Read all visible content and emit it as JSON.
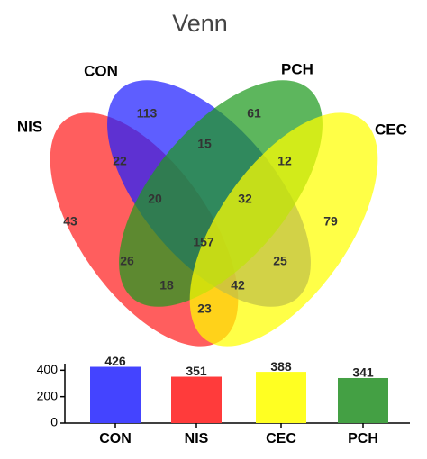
{
  "chart_data": [
    {
      "type": "venn",
      "title": "Venn",
      "sets": [
        {
          "name": "NIS",
          "color": "#ff2020"
        },
        {
          "name": "CON",
          "color": "#2020ff"
        },
        {
          "name": "PCH",
          "color": "#1f9a1f"
        },
        {
          "name": "CEC",
          "color": "#ffff00"
        }
      ],
      "values": [
        113,
        61,
        15,
        22,
        12,
        20,
        32,
        43,
        79,
        157,
        26,
        25,
        18,
        42,
        23
      ]
    },
    {
      "type": "bar",
      "categories": [
        "CON",
        "NIS",
        "CEC",
        "PCH"
      ],
      "values": [
        426,
        351,
        388,
        341
      ],
      "colors": [
        "#4444ff",
        "#ff3b3b",
        "#ffff22",
        "#44a044"
      ],
      "ylim": [
        0,
        450
      ],
      "yticks": [
        0,
        200,
        400
      ]
    }
  ]
}
